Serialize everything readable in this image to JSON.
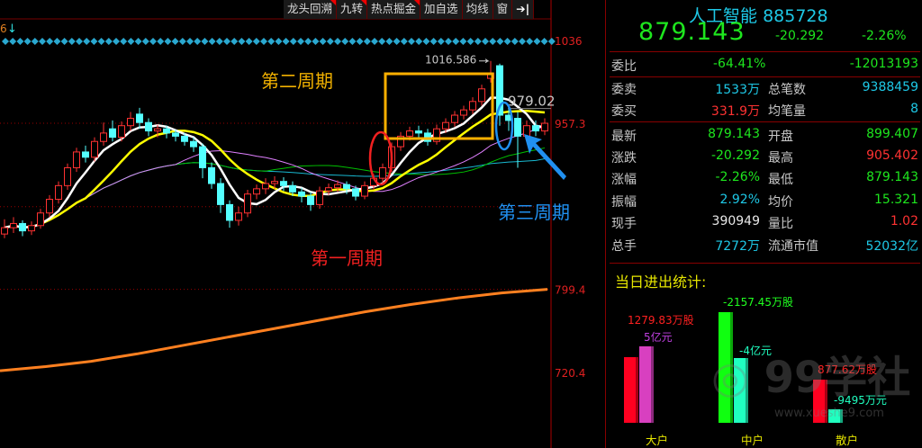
{
  "toolbar": {
    "items": [
      "龙头回溯",
      "九转",
      "热点掘金",
      "加自选",
      "均线",
      "窗"
    ],
    "exit_icon": "arrow-right-bar-icon"
  },
  "chart": {
    "indicator_label": "6",
    "indicator_arrow": "↓",
    "y_axis_labels": [
      "1036",
      "957.3",
      "799.4",
      "720.4"
    ],
    "y_axis_values": [
      1036,
      957.3,
      799.4,
      720.4
    ],
    "high_label": "1016.586",
    "high_value": 1016.586,
    "level_label": "979.02",
    "level_value": 979.02,
    "annotations": {
      "cycle1": "第一周期",
      "cycle2": "第二周期",
      "cycle3": "第三周期"
    },
    "colors": {
      "up": "#ff3232",
      "down": "#54ffff",
      "ma5": "#ffffff",
      "ma10": "#ffff00",
      "ma20": "#e080ff",
      "ma30": "#00c000",
      "ma60": "#18b8d0",
      "long": "#ff8020",
      "diamonds": "#2aa8d0"
    },
    "candles": [
      [
        852,
        866,
        848,
        858
      ],
      [
        858,
        868,
        853,
        862
      ],
      [
        862,
        865,
        850,
        855
      ],
      [
        855,
        864,
        851,
        860
      ],
      [
        860,
        876,
        857,
        872
      ],
      [
        872,
        889,
        868,
        885
      ],
      [
        885,
        902,
        881,
        898
      ],
      [
        898,
        919,
        894,
        915
      ],
      [
        915,
        934,
        911,
        930
      ],
      [
        930,
        936,
        920,
        925
      ],
      [
        925,
        944,
        921,
        940
      ],
      [
        940,
        958,
        936,
        948
      ],
      [
        952,
        960,
        940,
        944
      ],
      [
        944,
        959,
        940,
        955
      ],
      [
        955,
        968,
        950,
        962
      ],
      [
        966,
        972,
        952,
        958
      ],
      [
        958,
        962,
        945,
        950
      ],
      [
        950,
        956,
        944,
        952
      ],
      [
        952,
        955,
        943,
        948
      ],
      [
        948,
        951,
        940,
        945
      ],
      [
        945,
        948,
        936,
        940
      ],
      [
        940,
        944,
        930,
        935
      ],
      [
        935,
        938,
        905,
        915
      ],
      [
        915,
        920,
        895,
        900
      ],
      [
        900,
        905,
        872,
        880
      ],
      [
        880,
        884,
        858,
        865
      ],
      [
        865,
        878,
        860,
        872
      ],
      [
        872,
        894,
        868,
        890
      ],
      [
        890,
        899,
        885,
        895
      ],
      [
        895,
        905,
        890,
        900
      ],
      [
        900,
        907,
        895,
        902
      ],
      [
        902,
        906,
        893,
        898
      ],
      [
        898,
        902,
        888,
        892
      ],
      [
        892,
        896,
        882,
        888
      ],
      [
        888,
        892,
        874,
        880
      ],
      [
        880,
        897,
        876,
        893
      ],
      [
        893,
        900,
        889,
        896
      ],
      [
        896,
        903,
        892,
        899
      ],
      [
        899,
        902,
        890,
        895
      ],
      [
        895,
        898,
        884,
        888
      ],
      [
        888,
        902,
        885,
        898
      ],
      [
        898,
        909,
        894,
        905
      ],
      [
        905,
        919,
        901,
        915
      ],
      [
        915,
        939,
        911,
        935
      ],
      [
        935,
        949,
        931,
        945
      ],
      [
        945,
        954,
        941,
        950
      ],
      [
        950,
        955,
        943,
        948
      ],
      [
        948,
        952,
        936,
        940
      ],
      [
        940,
        956,
        937,
        952
      ],
      [
        952,
        962,
        948,
        958
      ],
      [
        958,
        969,
        954,
        965
      ],
      [
        965,
        974,
        961,
        970
      ],
      [
        970,
        982,
        966,
        978
      ],
      [
        978,
        994,
        974,
        990
      ],
      [
        1000,
        1016.586,
        996,
        1005
      ],
      [
        1012,
        1014,
        955,
        965
      ],
      [
        965,
        975,
        950,
        960
      ],
      [
        962,
        968,
        915,
        945
      ],
      [
        945,
        960,
        940,
        955
      ],
      [
        955,
        960,
        945,
        950
      ],
      [
        950,
        962,
        946,
        957.3
      ]
    ],
    "long_ma": [
      722,
      726,
      731,
      738,
      746,
      754,
      762,
      770,
      778,
      785,
      791,
      796,
      799.4
    ]
  },
  "quote": {
    "name": "人工智能",
    "code": "885728",
    "price": "879.143",
    "change": "-20.292",
    "change_pct": "-2.26%",
    "weibi": {
      "label": "委比",
      "pct": "-64.41%",
      "diff": "-12013193"
    },
    "rows": [
      {
        "l1": "委卖",
        "v1": "1533万",
        "c1": "c",
        "l2": "总笔数",
        "v2": "9388459",
        "c2": "c"
      },
      {
        "l1": "委买",
        "v1": "331.9万",
        "c1": "r",
        "l2": "均笔量",
        "v2": "8",
        "c2": "c"
      },
      {
        "l1": "最新",
        "v1": "879.143",
        "c1": "g",
        "l2": "开盘",
        "v2": "899.407",
        "c2": "g"
      },
      {
        "l1": "涨跌",
        "v1": "-20.292",
        "c1": "g",
        "l2": "最高",
        "v2": "905.402",
        "c2": "r"
      },
      {
        "l1": "涨幅",
        "v1": "-2.26%",
        "c1": "g",
        "l2": "最低",
        "v2": "879.143",
        "c2": "g"
      },
      {
        "l1": "振幅",
        "v1": "2.92%",
        "c1": "c",
        "l2": "均价",
        "v2": "15.321",
        "c2": "g"
      },
      {
        "l1": "现手",
        "v1": "390949",
        "c1": "w",
        "l2": "量比",
        "v2": "1.02",
        "c2": "r"
      },
      {
        "l1": "总手",
        "v1": "7272万",
        "c1": "c",
        "l2": "流通市值",
        "v2": "52032亿",
        "c2": "c"
      }
    ]
  },
  "stats": {
    "title": "当日进出统计:",
    "groups": [
      {
        "name": "大户",
        "shares": "1279.83万股",
        "amount": "5亿元"
      },
      {
        "name": "中户",
        "shares": "-2157.45万股",
        "amount": "-4亿元"
      },
      {
        "name": "散户",
        "shares": "877.62万股",
        "amount": "-9495万元"
      }
    ]
  },
  "watermark": {
    "logo": "99学社",
    "url": "www.xueshe9.com"
  }
}
